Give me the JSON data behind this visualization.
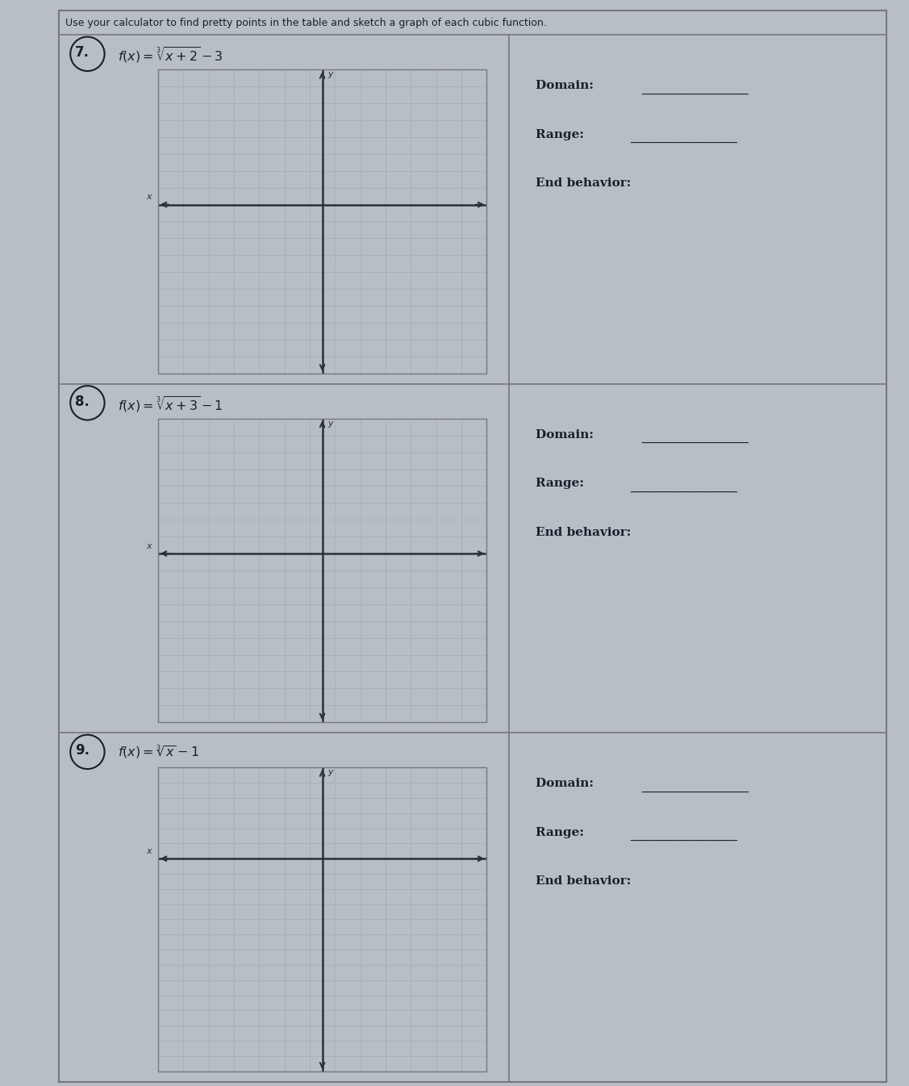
{
  "header_text": "Use your calculator to find pretty points in the table and sketch a graph of each cubic function.",
  "bg_color": "#b8bec6",
  "grid_bg": "#d8dde3",
  "grid_color": "#a8adb5",
  "axis_color": "#2a2f3a",
  "text_color": "#1a1f2a",
  "border_color": "#777",
  "problems": [
    {
      "number": "7.",
      "formula_latex": "$f(x) = \\sqrt[3]{x+2} - 3$",
      "rows_above": 8,
      "rows_below": 10,
      "cols": 13
    },
    {
      "number": "8.",
      "formula_latex": "$f(x) = \\sqrt[3]{x+3} - 1$",
      "rows_above": 8,
      "rows_below": 10,
      "cols": 13
    },
    {
      "number": "9.",
      "formula_latex": "$f(x) = \\sqrt[3]{x} - 1$",
      "rows_above": 6,
      "rows_below": 14,
      "cols": 13
    }
  ],
  "header_fontsize": 9.0,
  "formula_fontsize": 11.5,
  "label_fontsize": 11.0,
  "number_fontsize": 12
}
